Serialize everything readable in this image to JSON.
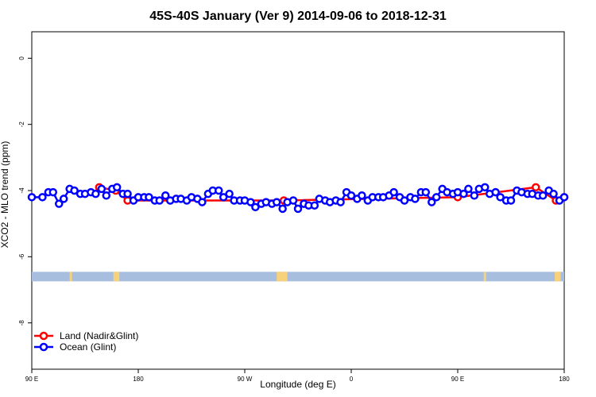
{
  "chart_data": {
    "type": "line",
    "title": "45S-40S January (Ver 9)   2014-09-06 to 2018-12-31",
    "xlabel": "Longitude (deg E)",
    "ylabel": "XCO2 - MLO trend (ppm)",
    "x_ticks": [
      {
        "value": 90,
        "label": "90 E"
      },
      {
        "value": 180,
        "label": "180"
      },
      {
        "value": 270,
        "label": "90 W"
      },
      {
        "value": 360,
        "label": "0"
      },
      {
        "value": 450,
        "label": "90 E"
      },
      {
        "value": 540,
        "label": "180"
      }
    ],
    "y_ticks": [
      {
        "value": 0,
        "label": "0"
      },
      {
        "value": -2,
        "label": "-2"
      },
      {
        "value": -4,
        "label": "-4"
      },
      {
        "value": -6,
        "label": "-6"
      },
      {
        "value": -8,
        "label": "-8"
      }
    ],
    "xlim": [
      90,
      540
    ],
    "ylim": [
      -9.4,
      0.8
    ],
    "grid": false,
    "legend_position": "bottom-left",
    "land_band_y": -6.6,
    "series": [
      {
        "name": "Land (Nadir&Glint)",
        "color": "#ff0000",
        "x": [
          147,
          161,
          171,
          303,
          450,
          516,
          533,
          540
        ],
        "y": [
          -3.9,
          -4.0,
          -4.3,
          -4.3,
          -4.2,
          -3.9,
          -4.3,
          -4.2
        ]
      },
      {
        "name": "Ocean (Glint)",
        "color": "#0000ff",
        "x": [
          90,
          99,
          104,
          108,
          113,
          117,
          122,
          126,
          131,
          135,
          140,
          144,
          149,
          153,
          158,
          162,
          167,
          171,
          176,
          180,
          185,
          189,
          194,
          198,
          203,
          207,
          212,
          216,
          221,
          225,
          230,
          234,
          239,
          243,
          248,
          252,
          257,
          261,
          266,
          270,
          275,
          279,
          284,
          288,
          293,
          297,
          302,
          306,
          311,
          315,
          320,
          324,
          329,
          333,
          338,
          342,
          347,
          351,
          356,
          360,
          365,
          369,
          374,
          378,
          383,
          387,
          392,
          396,
          401,
          405,
          410,
          414,
          419,
          423,
          428,
          432,
          437,
          441,
          446,
          450,
          455,
          459,
          464,
          468,
          473,
          477,
          482,
          486,
          491,
          495,
          500,
          504,
          509,
          513,
          518,
          522,
          527,
          531,
          536,
          540
        ],
        "y": [
          -4.2,
          -4.2,
          -4.05,
          -4.05,
          -4.4,
          -4.25,
          -3.95,
          -4.0,
          -4.1,
          -4.1,
          -4.05,
          -4.1,
          -3.95,
          -4.15,
          -3.95,
          -3.9,
          -4.1,
          -4.1,
          -4.3,
          -4.2,
          -4.2,
          -4.2,
          -4.3,
          -4.3,
          -4.15,
          -4.3,
          -4.25,
          -4.25,
          -4.3,
          -4.2,
          -4.25,
          -4.35,
          -4.1,
          -4.0,
          -4.0,
          -4.2,
          -4.1,
          -4.3,
          -4.3,
          -4.3,
          -4.35,
          -4.5,
          -4.4,
          -4.35,
          -4.4,
          -4.35,
          -4.55,
          -4.35,
          -4.3,
          -4.55,
          -4.4,
          -4.45,
          -4.45,
          -4.25,
          -4.3,
          -4.35,
          -4.3,
          -4.35,
          -4.05,
          -4.15,
          -4.25,
          -4.15,
          -4.3,
          -4.2,
          -4.2,
          -4.2,
          -4.15,
          -4.05,
          -4.2,
          -4.3,
          -4.2,
          -4.25,
          -4.05,
          -4.05,
          -4.35,
          -4.2,
          -3.95,
          -4.05,
          -4.1,
          -4.05,
          -4.1,
          -3.95,
          -4.15,
          -3.95,
          -3.9,
          -4.1,
          -4.05,
          -4.2,
          -4.3,
          -4.3,
          -4.0,
          -4.05,
          -4.1,
          -4.1,
          -4.15,
          -4.15,
          -4.0,
          -4.1,
          -4.3,
          -4.2
        ]
      }
    ],
    "colors": {
      "ocean_band": "#a7bedf",
      "land_band": "#f7d27a",
      "axis": "#000000"
    }
  }
}
